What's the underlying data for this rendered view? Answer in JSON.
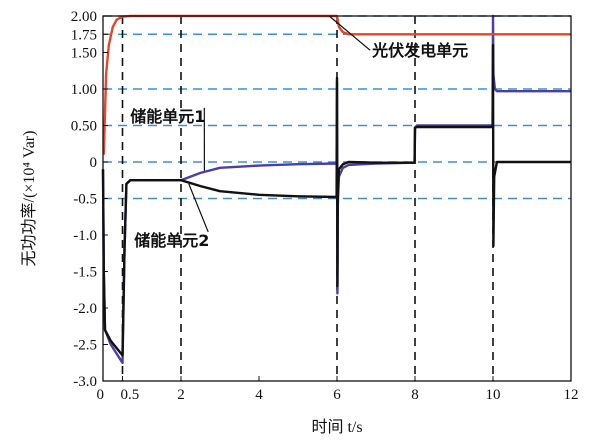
{
  "chart_data": {
    "type": "line",
    "title": "",
    "xlabel": "时间 t/s",
    "ylabel": "无功功率/(×10⁴ Var)",
    "xlim": [
      0,
      12
    ],
    "ylim": [
      -3.0,
      2.0
    ],
    "x_ticks": [
      0,
      0.5,
      2,
      4,
      6,
      8,
      10,
      12
    ],
    "x_tick_labels": [
      "0",
      "0.5",
      "2",
      "4",
      "6",
      "8",
      "10",
      "12"
    ],
    "y_ticks": [
      2.0,
      1.75,
      1.5,
      1.0,
      0.5,
      0,
      -0.5,
      -1.0,
      -1.5,
      -2.0,
      -2.5,
      -3.0
    ],
    "y_tick_labels": [
      "2.00",
      "1.75",
      "1.50",
      "1.00",
      "0.50",
      "0",
      "-0.5",
      "-1.0",
      "-1.5",
      "-2.0",
      "-2.5",
      "-3.0"
    ],
    "hlines": [
      2.0,
      1.75,
      1.0,
      0.5,
      0,
      -0.5
    ],
    "vlines": [
      0.5,
      2,
      6,
      8,
      10
    ],
    "series": [
      {
        "name": "光伏发电单元",
        "color": "#e8442a",
        "x": [
          0.02,
          0.08,
          0.15,
          0.25,
          0.35,
          0.5,
          0.7,
          1.0,
          2.0,
          5.99,
          6.0,
          6.05,
          6.15,
          6.3,
          8.0,
          10.0,
          12.0
        ],
        "y": [
          0.1,
          1.2,
          1.6,
          1.85,
          1.95,
          1.99,
          2.0,
          2.0,
          2.0,
          2.0,
          2.0,
          1.85,
          1.78,
          1.75,
          1.75,
          1.75,
          1.75
        ]
      },
      {
        "name": "储能单元1",
        "color": "#4a3fa8",
        "x": [
          0.0,
          0.02,
          0.05,
          0.2,
          0.5,
          0.55,
          0.6,
          0.7,
          1.0,
          2.0,
          2.5,
          3.0,
          4.0,
          5.0,
          5.99,
          6.0,
          6.01,
          6.02,
          6.05,
          6.15,
          6.3,
          7.0,
          7.99,
          8.0,
          8.05,
          8.1,
          9.99,
          10.0,
          10.01,
          10.05,
          10.1,
          12.0
        ],
        "y": [
          -0.1,
          -1.5,
          -2.3,
          -2.5,
          -2.75,
          -1.2,
          -0.3,
          -0.25,
          -0.25,
          -0.25,
          -0.15,
          -0.08,
          -0.05,
          -0.03,
          -0.02,
          1.1,
          -1.8,
          -0.6,
          -0.2,
          -0.08,
          -0.04,
          -0.02,
          -0.01,
          0.47,
          0.5,
          0.5,
          0.5,
          2.0,
          1.2,
          1.0,
          0.97,
          0.97
        ]
      },
      {
        "name": "储能单元2",
        "color": "#111111",
        "x": [
          0.0,
          0.02,
          0.05,
          0.2,
          0.5,
          0.55,
          0.6,
          0.7,
          1.0,
          2.0,
          2.5,
          3.0,
          4.0,
          5.0,
          5.99,
          6.0,
          6.01,
          6.02,
          6.05,
          6.15,
          6.3,
          7.0,
          7.99,
          8.0,
          8.05,
          8.1,
          9.99,
          10.0,
          10.01,
          10.03,
          10.1,
          12.0
        ],
        "y": [
          -0.1,
          -1.5,
          -2.3,
          -2.45,
          -2.65,
          -1.2,
          -0.3,
          -0.25,
          -0.25,
          -0.25,
          -0.33,
          -0.4,
          -0.45,
          -0.47,
          -0.48,
          1.15,
          -1.7,
          -0.4,
          -0.1,
          -0.03,
          0.0,
          -0.01,
          -0.01,
          0.47,
          0.48,
          0.48,
          0.48,
          1.6,
          -1.15,
          -0.2,
          0.0,
          0.0
        ]
      }
    ],
    "annotations": [
      {
        "text": "光伏发电单元",
        "x": 6.9,
        "y": 1.45,
        "arrow_x": 5.8,
        "arrow_y": 2.0
      },
      {
        "text": "储能单元1",
        "x": 0.7,
        "y": 0.55,
        "arrow_x": 2.6,
        "arrow_y": -0.12
      },
      {
        "text": "储能单元2",
        "x": 0.8,
        "y": -1.15,
        "arrow_x": 2.2,
        "arrow_y": -0.3
      }
    ]
  }
}
